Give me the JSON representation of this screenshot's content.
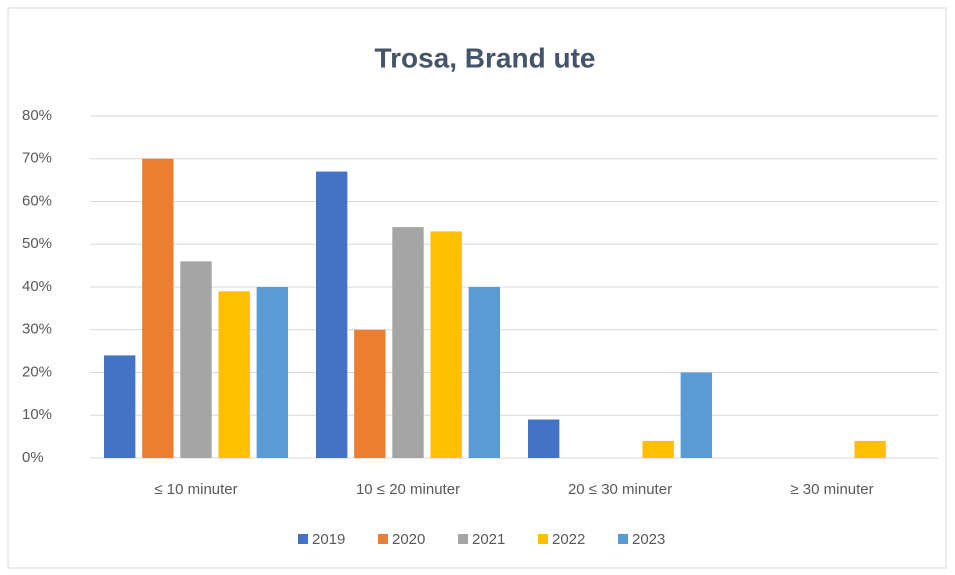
{
  "chart_data": {
    "type": "bar",
    "title": "Trosa, Brand ute",
    "categories": [
      "≤ 10 minuter",
      "10 ≤ 20 minuter",
      "20 ≤ 30 minuter",
      "≥ 30 minuter"
    ],
    "series": [
      {
        "name": "2019",
        "color": "#4472c4",
        "values": [
          24,
          67,
          9,
          0
        ]
      },
      {
        "name": "2020",
        "color": "#ed7d31",
        "values": [
          70,
          30,
          0,
          0
        ]
      },
      {
        "name": "2021",
        "color": "#a5a5a5",
        "values": [
          46,
          54,
          0,
          0
        ]
      },
      {
        "name": "2022",
        "color": "#ffc000",
        "values": [
          39,
          53,
          4,
          4
        ]
      },
      {
        "name": "2023",
        "color": "#5b9bd5",
        "values": [
          40,
          40,
          20,
          0
        ]
      }
    ],
    "ylim": [
      0,
      80
    ],
    "yticks": [
      {
        "value": 0,
        "label": "0%"
      },
      {
        "value": 10,
        "label": "10%"
      },
      {
        "value": 20,
        "label": "20%"
      },
      {
        "value": 30,
        "label": "30%"
      },
      {
        "value": 40,
        "label": "40%"
      },
      {
        "value": 50,
        "label": "50%"
      },
      {
        "value": 60,
        "label": "60%"
      },
      {
        "value": 70,
        "label": "70%"
      },
      {
        "value": 80,
        "label": "80%"
      }
    ],
    "grid": true,
    "legend": "bottom"
  }
}
